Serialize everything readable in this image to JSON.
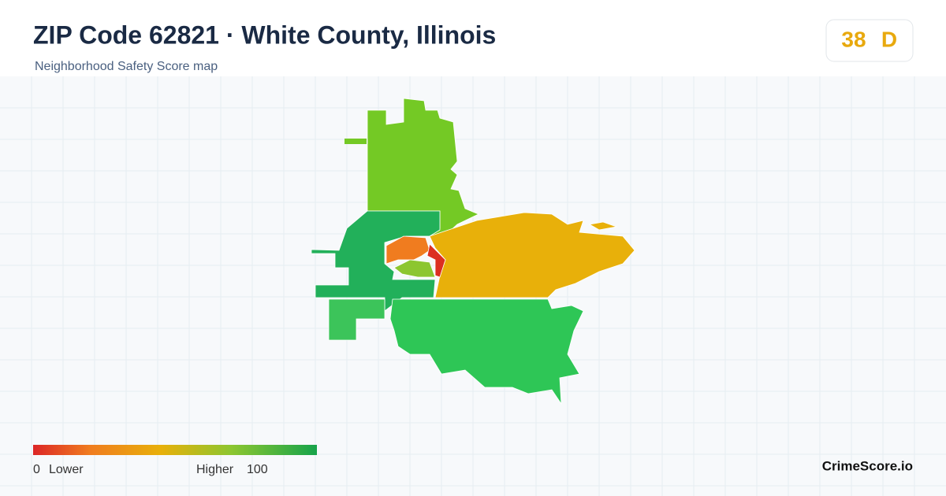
{
  "header": {
    "title": "ZIP Code 62821 · White County, Illinois",
    "subtitle": "Neighborhood Safety Score map"
  },
  "score": {
    "value": "38",
    "grade": "D"
  },
  "legend": {
    "min": "0",
    "min_label": "Lower",
    "max_label": "Higher",
    "max": "100"
  },
  "brand": "CrimeScore.io"
}
